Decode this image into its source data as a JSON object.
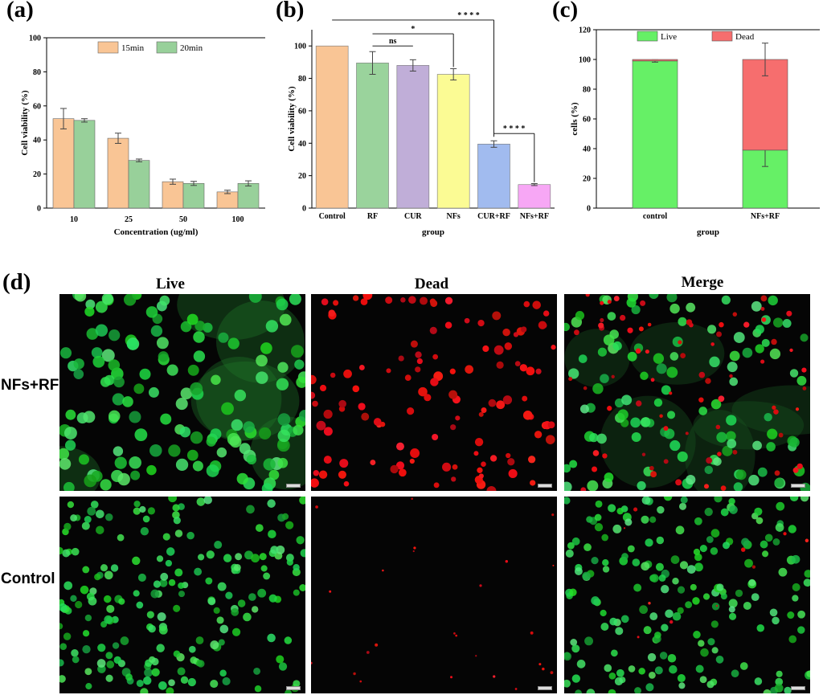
{
  "panels": {
    "a": "(a)",
    "b": "(b)",
    "c": "(c)",
    "d": "(d)"
  },
  "chart_data": [
    {
      "type": "bar",
      "ylabel": "Cell viability (%)",
      "xlabel": "Concentration (ug/ml)",
      "categories": [
        "10",
        "25",
        "50",
        "100"
      ],
      "yticks": [
        "0",
        "20",
        "40",
        "60",
        "80",
        "100"
      ],
      "ylim": [
        0,
        100
      ],
      "legend_position": "top",
      "series": [
        {
          "name": "15min",
          "values": [
            52.5,
            41,
            15.5,
            9.5
          ],
          "errors": [
            6,
            3,
            1.5,
            1
          ],
          "color": "#f9c595"
        },
        {
          "name": "20min",
          "values": [
            51.5,
            28,
            14.5,
            14.5
          ],
          "errors": [
            1,
            0.8,
            1.2,
            1.5
          ],
          "color": "#98d09a"
        }
      ]
    },
    {
      "type": "bar",
      "ylabel": "Cell viability (%)",
      "xlabel": "group",
      "categories": [
        "Control",
        "RF",
        "CUR",
        "NFs",
        "CUR+RF",
        "NFs+RF"
      ],
      "yticks": [
        "0",
        "20",
        "40",
        "60",
        "80",
        "100"
      ],
      "ylim": [
        0,
        110
      ],
      "values": [
        100,
        89.5,
        88,
        82.5,
        39.5,
        14.5
      ],
      "errors": [
        0,
        7,
        3.5,
        3.5,
        2,
        0.6
      ],
      "colors": [
        "#f9c595",
        "#9ad39c",
        "#c0aed8",
        "#fbfb94",
        "#a1bbef",
        "#f7a7f5"
      ],
      "annotations": [
        {
          "text": "ns",
          "from": "RF",
          "to": "CUR"
        },
        {
          "text": "*",
          "from": "RF",
          "to": "NFs"
        },
        {
          "text": "* * * *",
          "from": "Control",
          "to": "CUR+RF"
        },
        {
          "text": "* * * *",
          "from": "CUR+RF",
          "to": "NFs+RF"
        }
      ]
    },
    {
      "type": "bar",
      "stacked": true,
      "ylabel": "cells (%)",
      "xlabel": "group",
      "categories": [
        "control",
        "NFs+RF"
      ],
      "yticks": [
        "0",
        "20",
        "40",
        "60",
        "80",
        "100",
        "120"
      ],
      "ylim": [
        0,
        120
      ],
      "legend_position": "top",
      "series": [
        {
          "name": "Live",
          "values": [
            99,
            39
          ],
          "errors": [
            0.8,
            11
          ],
          "color": "#66f066"
        },
        {
          "name": "Dead",
          "values": [
            1,
            61
          ],
          "errors": [
            0,
            11
          ],
          "color": "#f66e6e"
        }
      ]
    }
  ],
  "micrographs": {
    "columns": [
      "Live",
      "Dead",
      "Merge"
    ],
    "rows": [
      "NFs+RF",
      "Control"
    ]
  }
}
